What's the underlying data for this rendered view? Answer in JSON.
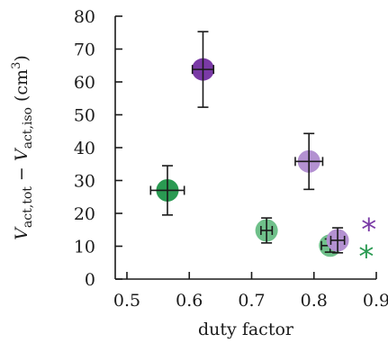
{
  "chart_data": {
    "type": "scatter",
    "title": "",
    "xlabel": "duty factor",
    "ylabel_main": "V",
    "ylabel_sub1": "act,tot",
    "ylabel_minus": " − ",
    "ylabel_main2": "V",
    "ylabel_sub2": "act,iso",
    "ylabel_unit": " (cm",
    "ylabel_unit_sup": "3",
    "ylabel_unit_close": ")",
    "xlim": [
      0.45,
      0.9
    ],
    "ylim": [
      0,
      80
    ],
    "xticks": [
      "0.5",
      "0.6",
      "0.7",
      "0.8",
      "0.9"
    ],
    "yticks": [
      "0",
      "10",
      "20",
      "30",
      "40",
      "50",
      "60",
      "70",
      "80"
    ],
    "grid": false,
    "legend": false,
    "points": [
      {
        "x": 0.622,
        "y": 63.8,
        "xerr": 0.017,
        "yerr": 11.5,
        "color": "#7a3aa6"
      },
      {
        "x": 0.565,
        "y": 27.0,
        "xerr": 0.027,
        "yerr": 7.5,
        "color": "#2a9a52"
      },
      {
        "x": 0.792,
        "y": 35.8,
        "xerr": 0.022,
        "yerr": 8.5,
        "color": "#b391d1"
      },
      {
        "x": 0.724,
        "y": 14.8,
        "xerr": 0.009,
        "yerr": 3.8,
        "color": "#6fc08a"
      },
      {
        "x": 0.826,
        "y": 10.2,
        "xerr": 0.014,
        "yerr": 2.0,
        "color": "#6fc08a"
      },
      {
        "x": 0.838,
        "y": 11.8,
        "xerr": 0.011,
        "yerr": 3.8,
        "color": "#b391d1"
      }
    ],
    "markers": [
      {
        "x": 0.888,
        "y": 15.8,
        "symbol": "*",
        "color": "#7a3aa6"
      },
      {
        "x": 0.884,
        "y": 7.6,
        "symbol": "*",
        "color": "#2a9a52"
      }
    ]
  }
}
